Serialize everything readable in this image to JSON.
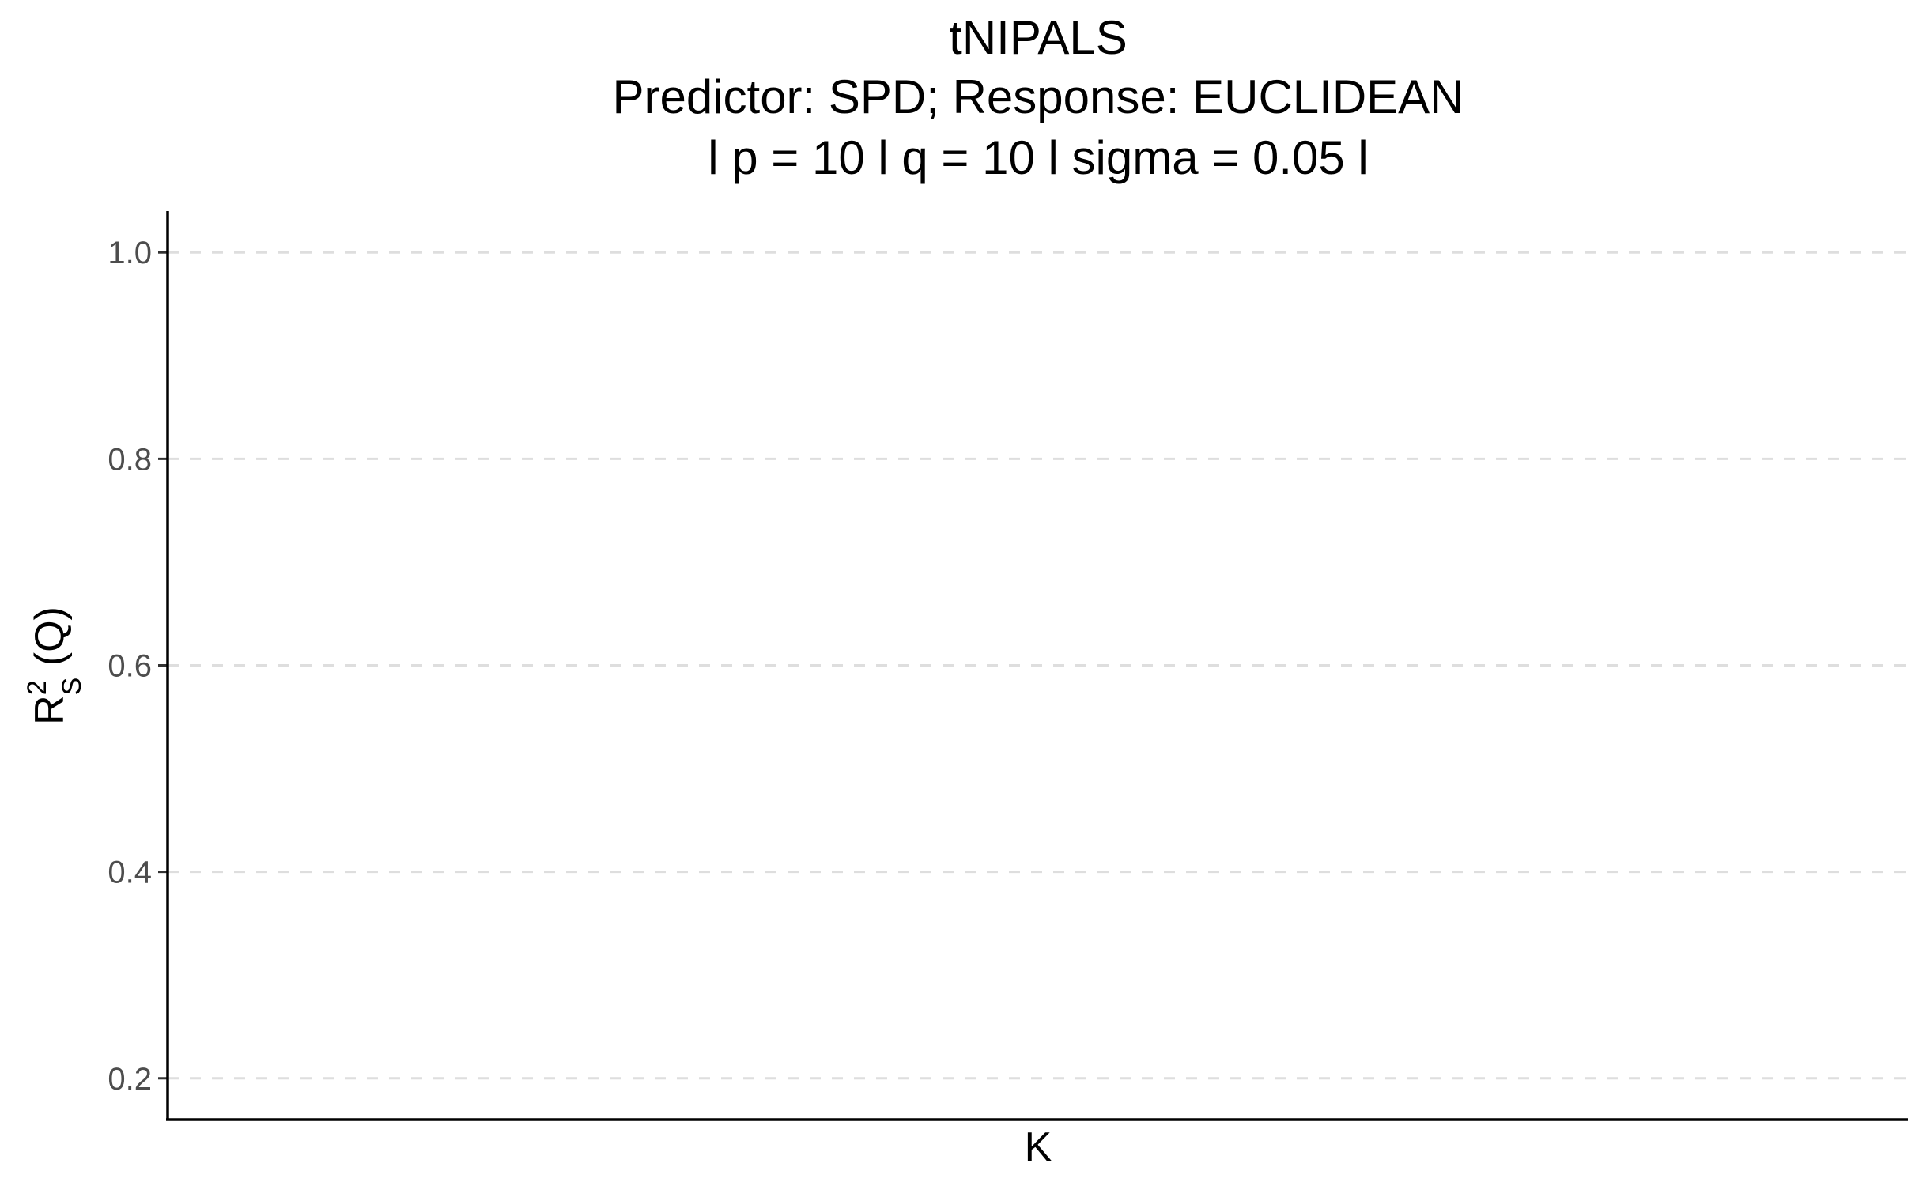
{
  "chart_data": {
    "type": "line",
    "title": "tNIPALS",
    "subtitle": "Predictor: SPD; Response: EUCLIDEAN",
    "subtitle2": "l p = 10 l q = 10 l sigma = 0.05 l",
    "xlabel": "K",
    "ylabel": {
      "base": "R",
      "superscript": "2",
      "subscript": "S",
      "suffix": " (Q)"
    },
    "yticks": [
      "0.2",
      "0.4",
      "0.6",
      "0.8",
      "1.0"
    ],
    "ytick_values": [
      0.2,
      0.4,
      0.6,
      0.8,
      1.0
    ],
    "ylim": [
      0.16,
      1.04
    ],
    "grid": "y-major-dashed",
    "series": [],
    "colors": {
      "grid": "#dedede",
      "axis": "#000000",
      "tick_text": "#4d4d4d"
    }
  }
}
